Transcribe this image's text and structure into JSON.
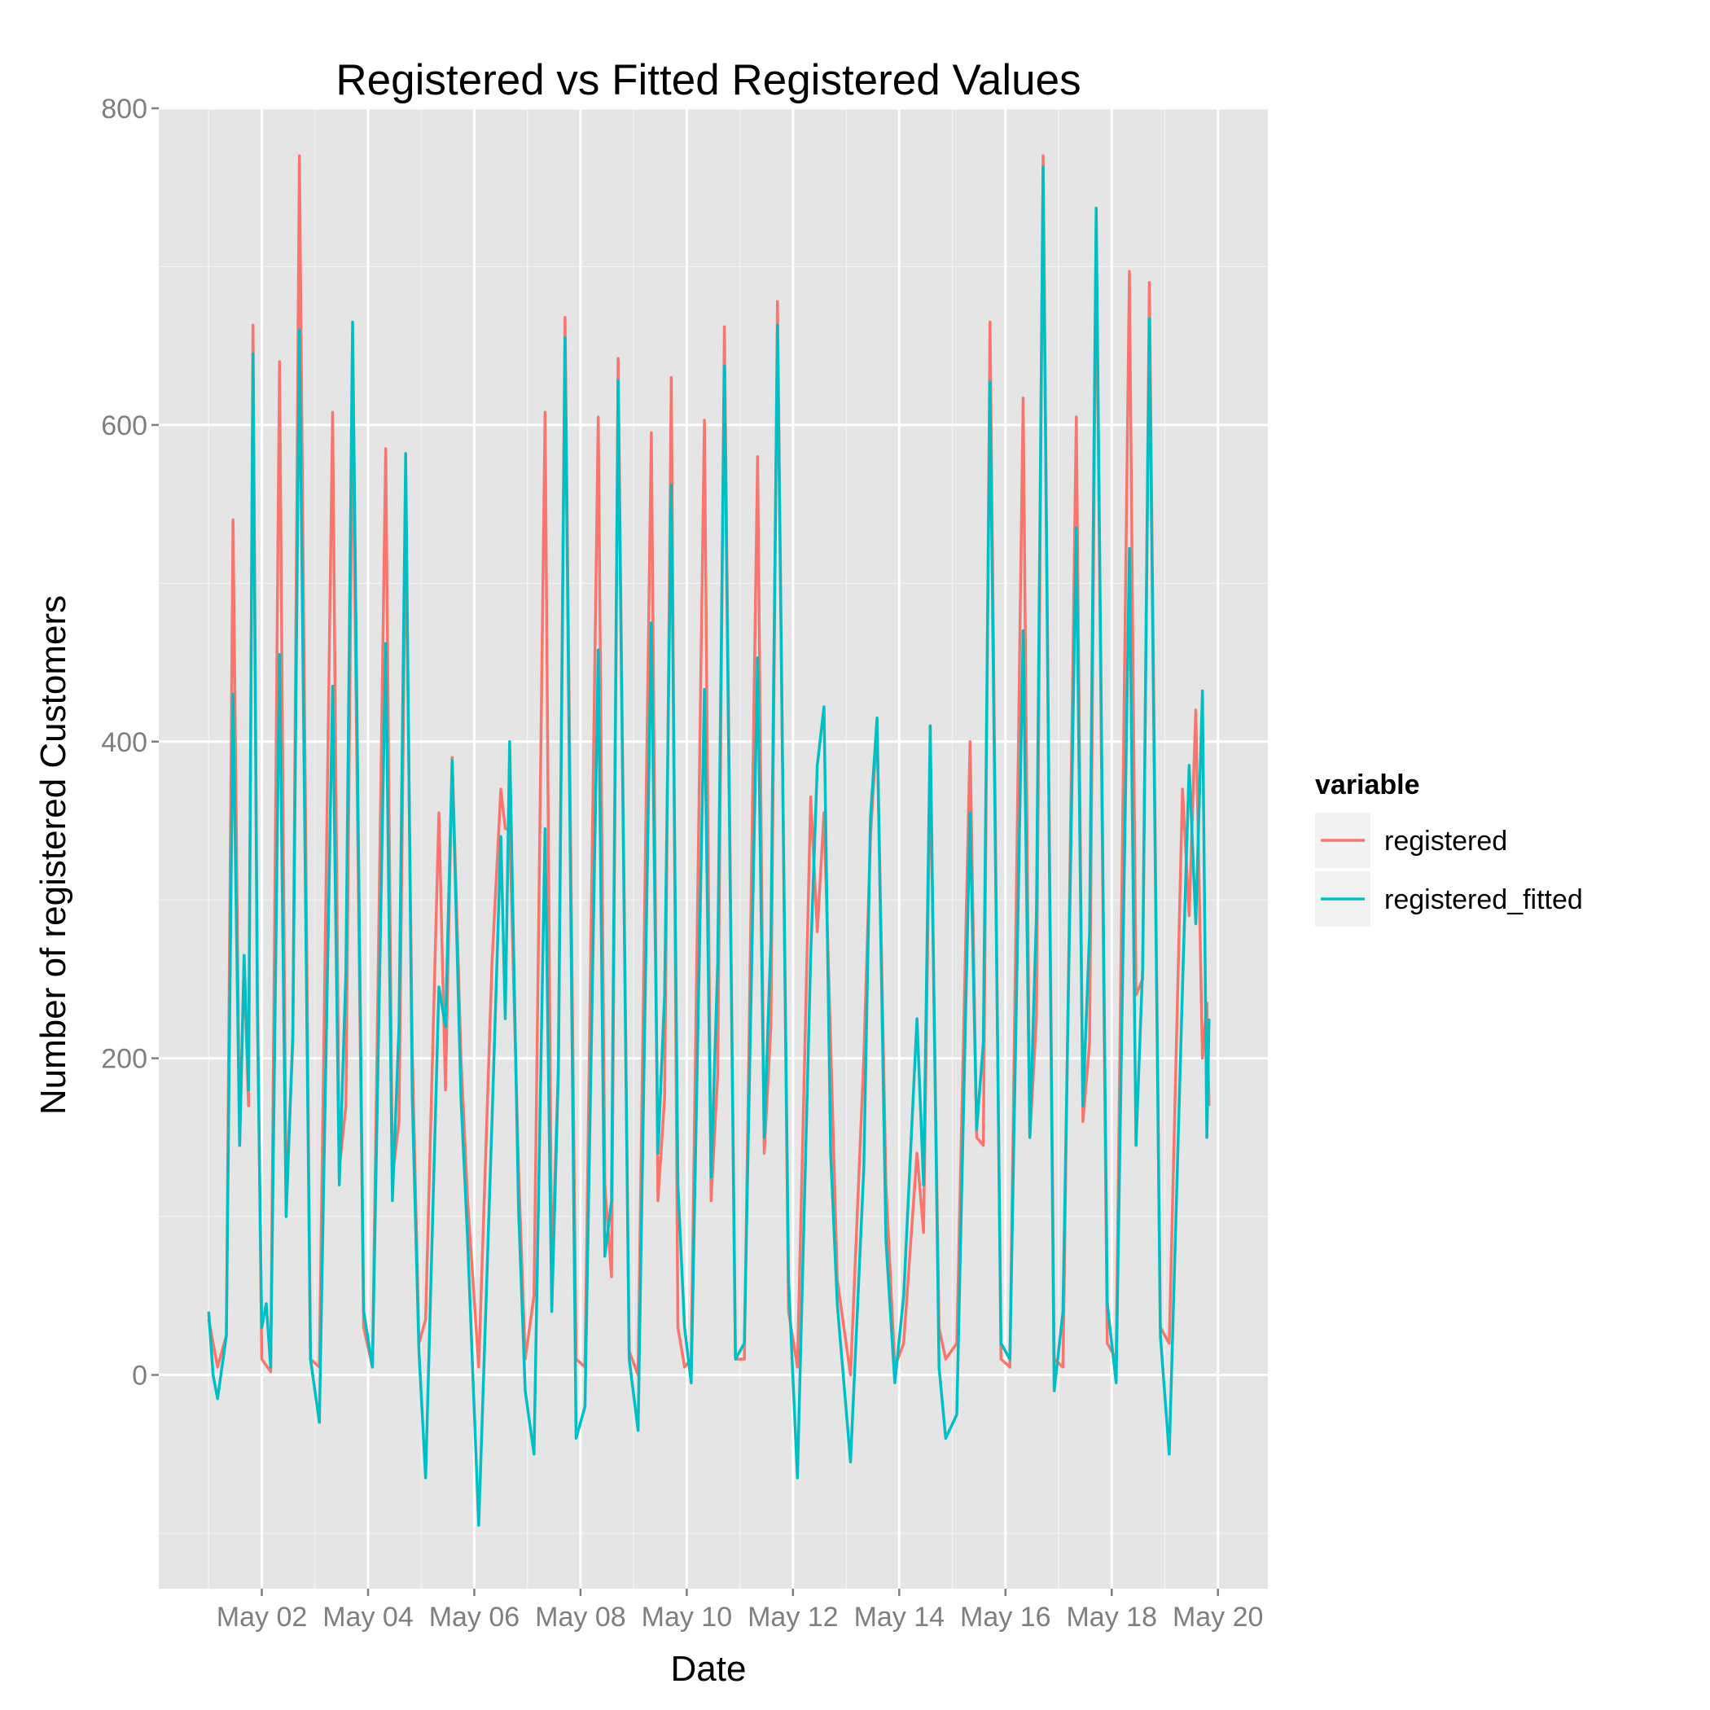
{
  "chart_data": {
    "type": "line",
    "title": "Registered vs Fitted Registered Values",
    "xlabel": "Date",
    "ylabel": "Number of registered Customers",
    "x_axis": {
      "kind": "date",
      "ticks": [
        "May 02",
        "May 04",
        "May 06",
        "May 08",
        "May 10",
        "May 12",
        "May 14",
        "May 16",
        "May 18",
        "May 20"
      ],
      "range": [
        "2011-05-01",
        "2011-05-20"
      ]
    },
    "y_axis": {
      "ticks": [
        "0",
        "200",
        "400",
        "600",
        "800"
      ],
      "range": [
        -135,
        800
      ]
    },
    "grid": true,
    "legend": {
      "title": "variable",
      "position": "right",
      "entries": [
        "registered",
        "registered_fitted"
      ]
    },
    "colors": {
      "registered": "#F8766D",
      "registered_fitted": "#00BFC4",
      "panel": "#E5E5E5",
      "grid": "#FFFFFF"
    },
    "series": [
      {
        "name": "registered",
        "color": "#F8766D",
        "points": [
          [
            "2011-05-01 00:00",
            35
          ],
          [
            "2011-05-01 04:00",
            5
          ],
          [
            "2011-05-01 08:00",
            25
          ],
          [
            "2011-05-01 11:00",
            540
          ],
          [
            "2011-05-01 14:00",
            145
          ],
          [
            "2011-05-01 16:00",
            260
          ],
          [
            "2011-05-01 18:00",
            170
          ],
          [
            "2011-05-01 20:00",
            663
          ],
          [
            "2011-05-01 22:00",
            240
          ],
          [
            "2011-05-02 00:00",
            10
          ],
          [
            "2011-05-02 04:00",
            2
          ],
          [
            "2011-05-02 08:00",
            640
          ],
          [
            "2011-05-02 11:00",
            110
          ],
          [
            "2011-05-02 14:00",
            210
          ],
          [
            "2011-05-02 17:00",
            770
          ],
          [
            "2011-05-02 22:00",
            10
          ],
          [
            "2011-05-03 02:00",
            5
          ],
          [
            "2011-05-03 08:00",
            608
          ],
          [
            "2011-05-03 11:00",
            130
          ],
          [
            "2011-05-03 14:00",
            170
          ],
          [
            "2011-05-03 17:00",
            615
          ],
          [
            "2011-05-03 22:00",
            30
          ],
          [
            "2011-05-04 02:00",
            5
          ],
          [
            "2011-05-04 08:00",
            585
          ],
          [
            "2011-05-04 11:00",
            125
          ],
          [
            "2011-05-04 14:00",
            160
          ],
          [
            "2011-05-04 17:00",
            545
          ],
          [
            "2011-05-04 20:00",
            205
          ],
          [
            "2011-05-04 23:00",
            20
          ],
          [
            "2011-05-05 02:00",
            35
          ],
          [
            "2011-05-05 08:00",
            355
          ],
          [
            "2011-05-05 11:00",
            180
          ],
          [
            "2011-05-05 14:00",
            390
          ],
          [
            "2011-05-05 18:00",
            200
          ],
          [
            "2011-05-05 21:00",
            110
          ],
          [
            "2011-05-06 02:00",
            5
          ],
          [
            "2011-05-06 08:00",
            260
          ],
          [
            "2011-05-06 12:00",
            370
          ],
          [
            "2011-05-06 14:00",
            345
          ],
          [
            "2011-05-06 16:00",
            345
          ],
          [
            "2011-05-06 20:00",
            130
          ],
          [
            "2011-05-06 23:00",
            10
          ],
          [
            "2011-05-07 03:00",
            50
          ],
          [
            "2011-05-07 08:00",
            608
          ],
          [
            "2011-05-07 11:00",
            60
          ],
          [
            "2011-05-07 14:00",
            195
          ],
          [
            "2011-05-07 17:00",
            668
          ],
          [
            "2011-05-07 22:00",
            10
          ],
          [
            "2011-05-08 02:00",
            5
          ],
          [
            "2011-05-08 08:00",
            605
          ],
          [
            "2011-05-08 11:00",
            120
          ],
          [
            "2011-05-08 14:00",
            62
          ],
          [
            "2011-05-08 17:00",
            642
          ],
          [
            "2011-05-08 22:00",
            15
          ],
          [
            "2011-05-09 02:00",
            0
          ],
          [
            "2011-05-09 08:00",
            595
          ],
          [
            "2011-05-09 11:00",
            110
          ],
          [
            "2011-05-09 14:00",
            175
          ],
          [
            "2011-05-09 17:00",
            630
          ],
          [
            "2011-05-09 20:00",
            30
          ],
          [
            "2011-05-09 23:00",
            5
          ],
          [
            "2011-05-10 02:00",
            10
          ],
          [
            "2011-05-10 08:00",
            603
          ],
          [
            "2011-05-10 11:00",
            110
          ],
          [
            "2011-05-10 14:00",
            190
          ],
          [
            "2011-05-10 17:00",
            662
          ],
          [
            "2011-05-10 22:00",
            10
          ],
          [
            "2011-05-11 02:00",
            10
          ],
          [
            "2011-05-11 08:00",
            580
          ],
          [
            "2011-05-11 11:00",
            140
          ],
          [
            "2011-05-11 14:00",
            220
          ],
          [
            "2011-05-11 17:00",
            678
          ],
          [
            "2011-05-11 22:00",
            40
          ],
          [
            "2011-05-12 02:00",
            5
          ],
          [
            "2011-05-12 08:00",
            365
          ],
          [
            "2011-05-12 11:00",
            280
          ],
          [
            "2011-05-12 14:00",
            355
          ],
          [
            "2011-05-12 17:00",
            210
          ],
          [
            "2011-05-12 20:00",
            60
          ],
          [
            "2011-05-13 02:00",
            0
          ],
          [
            "2011-05-13 08:00",
            200
          ],
          [
            "2011-05-13 11:00",
            340
          ],
          [
            "2011-05-13 14:00",
            410
          ],
          [
            "2011-05-13 18:00",
            120
          ],
          [
            "2011-05-13 22:00",
            5
          ],
          [
            "2011-05-14 02:00",
            20
          ],
          [
            "2011-05-14 08:00",
            140
          ],
          [
            "2011-05-14 11:00",
            90
          ],
          [
            "2011-05-14 14:00",
            390
          ],
          [
            "2011-05-14 18:00",
            30
          ],
          [
            "2011-05-14 21:00",
            10
          ],
          [
            "2011-05-15 02:00",
            20
          ],
          [
            "2011-05-15 08:00",
            400
          ],
          [
            "2011-05-15 11:00",
            150
          ],
          [
            "2011-05-15 14:00",
            145
          ],
          [
            "2011-05-15 17:00",
            665
          ],
          [
            "2011-05-15 22:00",
            10
          ],
          [
            "2011-05-16 02:00",
            5
          ],
          [
            "2011-05-16 08:00",
            617
          ],
          [
            "2011-05-16 11:00",
            150
          ],
          [
            "2011-05-16 14:00",
            225
          ],
          [
            "2011-05-16 17:00",
            770
          ],
          [
            "2011-05-16 22:00",
            10
          ],
          [
            "2011-05-17 02:00",
            5
          ],
          [
            "2011-05-17 08:00",
            605
          ],
          [
            "2011-05-17 11:00",
            160
          ],
          [
            "2011-05-17 14:00",
            210
          ],
          [
            "2011-05-17 17:00",
            725
          ],
          [
            "2011-05-17 22:00",
            20
          ],
          [
            "2011-05-18 02:00",
            10
          ],
          [
            "2011-05-18 08:00",
            697
          ],
          [
            "2011-05-18 11:00",
            240
          ],
          [
            "2011-05-18 14:00",
            250
          ],
          [
            "2011-05-18 17:00",
            690
          ],
          [
            "2011-05-18 22:00",
            30
          ],
          [
            "2011-05-19 02:00",
            20
          ],
          [
            "2011-05-19 08:00",
            370
          ],
          [
            "2011-05-19 11:00",
            290
          ],
          [
            "2011-05-19 14:00",
            420
          ],
          [
            "2011-05-19 17:00",
            200
          ],
          [
            "2011-05-19 19:00",
            235
          ],
          [
            "2011-05-19 20:00",
            170
          ]
        ]
      },
      {
        "name": "registered_fitted",
        "color": "#00BFC4",
        "points": [
          [
            "2011-05-01 00:00",
            40
          ],
          [
            "2011-05-01 02:00",
            0
          ],
          [
            "2011-05-01 04:00",
            -15
          ],
          [
            "2011-05-01 08:00",
            25
          ],
          [
            "2011-05-01 11:00",
            430
          ],
          [
            "2011-05-01 14:00",
            145
          ],
          [
            "2011-05-01 16:00",
            265
          ],
          [
            "2011-05-01 18:00",
            180
          ],
          [
            "2011-05-01 20:00",
            645
          ],
          [
            "2011-05-01 22:00",
            230
          ],
          [
            "2011-05-02 00:00",
            30
          ],
          [
            "2011-05-02 02:00",
            45
          ],
          [
            "2011-05-02 04:00",
            5
          ],
          [
            "2011-05-02 08:00",
            455
          ],
          [
            "2011-05-02 11:00",
            100
          ],
          [
            "2011-05-02 14:00",
            215
          ],
          [
            "2011-05-02 17:00",
            660
          ],
          [
            "2011-05-02 22:00",
            10
          ],
          [
            "2011-05-03 02:00",
            -30
          ],
          [
            "2011-05-03 08:00",
            435
          ],
          [
            "2011-05-03 11:00",
            120
          ],
          [
            "2011-05-03 14:00",
            255
          ],
          [
            "2011-05-03 17:00",
            665
          ],
          [
            "2011-05-03 22:00",
            40
          ],
          [
            "2011-05-04 02:00",
            5
          ],
          [
            "2011-05-04 08:00",
            462
          ],
          [
            "2011-05-04 11:00",
            110
          ],
          [
            "2011-05-04 14:00",
            220
          ],
          [
            "2011-05-04 17:00",
            582
          ],
          [
            "2011-05-04 20:00",
            175
          ],
          [
            "2011-05-04 23:00",
            15
          ],
          [
            "2011-05-05 02:00",
            -65
          ],
          [
            "2011-05-05 08:00",
            245
          ],
          [
            "2011-05-05 11:00",
            220
          ],
          [
            "2011-05-05 14:00",
            388
          ],
          [
            "2011-05-05 18:00",
            175
          ],
          [
            "2011-05-05 21:00",
            85
          ],
          [
            "2011-05-06 02:00",
            -95
          ],
          [
            "2011-05-06 08:00",
            160
          ],
          [
            "2011-05-06 12:00",
            340
          ],
          [
            "2011-05-06 14:00",
            225
          ],
          [
            "2011-05-06 16:00",
            400
          ],
          [
            "2011-05-06 20:00",
            105
          ],
          [
            "2011-05-06 23:00",
            -10
          ],
          [
            "2011-05-07 03:00",
            -50
          ],
          [
            "2011-05-07 08:00",
            345
          ],
          [
            "2011-05-07 11:00",
            40
          ],
          [
            "2011-05-07 14:00",
            190
          ],
          [
            "2011-05-07 17:00",
            655
          ],
          [
            "2011-05-07 22:00",
            -40
          ],
          [
            "2011-05-08 02:00",
            -20
          ],
          [
            "2011-05-08 08:00",
            458
          ],
          [
            "2011-05-08 11:00",
            75
          ],
          [
            "2011-05-08 14:00",
            110
          ],
          [
            "2011-05-08 17:00",
            628
          ],
          [
            "2011-05-08 22:00",
            10
          ],
          [
            "2011-05-09 02:00",
            -35
          ],
          [
            "2011-05-09 08:00",
            475
          ],
          [
            "2011-05-09 11:00",
            140
          ],
          [
            "2011-05-09 14:00",
            240
          ],
          [
            "2011-05-09 17:00",
            562
          ],
          [
            "2011-05-09 20:00",
            120
          ],
          [
            "2011-05-09 23:00",
            30
          ],
          [
            "2011-05-10 02:00",
            -5
          ],
          [
            "2011-05-10 08:00",
            433
          ],
          [
            "2011-05-10 11:00",
            125
          ],
          [
            "2011-05-10 14:00",
            260
          ],
          [
            "2011-05-10 17:00",
            637
          ],
          [
            "2011-05-10 22:00",
            10
          ],
          [
            "2011-05-11 02:00",
            20
          ],
          [
            "2011-05-11 08:00",
            453
          ],
          [
            "2011-05-11 11:00",
            150
          ],
          [
            "2011-05-11 14:00",
            275
          ],
          [
            "2011-05-11 17:00",
            663
          ],
          [
            "2011-05-11 22:00",
            60
          ],
          [
            "2011-05-12 02:00",
            -65
          ],
          [
            "2011-05-12 08:00",
            265
          ],
          [
            "2011-05-12 11:00",
            385
          ],
          [
            "2011-05-12 14:00",
            422
          ],
          [
            "2011-05-12 17:00",
            140
          ],
          [
            "2011-05-12 20:00",
            45
          ],
          [
            "2011-05-13 02:00",
            -55
          ],
          [
            "2011-05-13 08:00",
            130
          ],
          [
            "2011-05-13 11:00",
            352
          ],
          [
            "2011-05-13 14:00",
            415
          ],
          [
            "2011-05-13 18:00",
            85
          ],
          [
            "2011-05-13 22:00",
            -5
          ],
          [
            "2011-05-14 02:00",
            50
          ],
          [
            "2011-05-14 08:00",
            225
          ],
          [
            "2011-05-14 11:00",
            120
          ],
          [
            "2011-05-14 14:00",
            410
          ],
          [
            "2011-05-14 18:00",
            5
          ],
          [
            "2011-05-14 21:00",
            -40
          ],
          [
            "2011-05-15 02:00",
            -25
          ],
          [
            "2011-05-15 08:00",
            355
          ],
          [
            "2011-05-15 11:00",
            155
          ],
          [
            "2011-05-15 14:00",
            210
          ],
          [
            "2011-05-15 17:00",
            627
          ],
          [
            "2011-05-15 22:00",
            20
          ],
          [
            "2011-05-16 02:00",
            10
          ],
          [
            "2011-05-16 08:00",
            470
          ],
          [
            "2011-05-16 11:00",
            150
          ],
          [
            "2011-05-16 14:00",
            290
          ],
          [
            "2011-05-16 17:00",
            763
          ],
          [
            "2011-05-16 22:00",
            -10
          ],
          [
            "2011-05-17 02:00",
            40
          ],
          [
            "2011-05-17 08:00",
            535
          ],
          [
            "2011-05-17 11:00",
            170
          ],
          [
            "2011-05-17 14:00",
            280
          ],
          [
            "2011-05-17 17:00",
            737
          ],
          [
            "2011-05-17 22:00",
            45
          ],
          [
            "2011-05-18 02:00",
            -5
          ],
          [
            "2011-05-18 08:00",
            522
          ],
          [
            "2011-05-18 11:00",
            145
          ],
          [
            "2011-05-18 14:00",
            258
          ],
          [
            "2011-05-18 17:00",
            667
          ],
          [
            "2011-05-18 22:00",
            25
          ],
          [
            "2011-05-19 02:00",
            -50
          ],
          [
            "2011-05-19 08:00",
            245
          ],
          [
            "2011-05-19 11:00",
            385
          ],
          [
            "2011-05-19 14:00",
            285
          ],
          [
            "2011-05-19 17:00",
            432
          ],
          [
            "2011-05-19 19:00",
            150
          ],
          [
            "2011-05-19 20:00",
            225
          ]
        ]
      }
    ]
  }
}
